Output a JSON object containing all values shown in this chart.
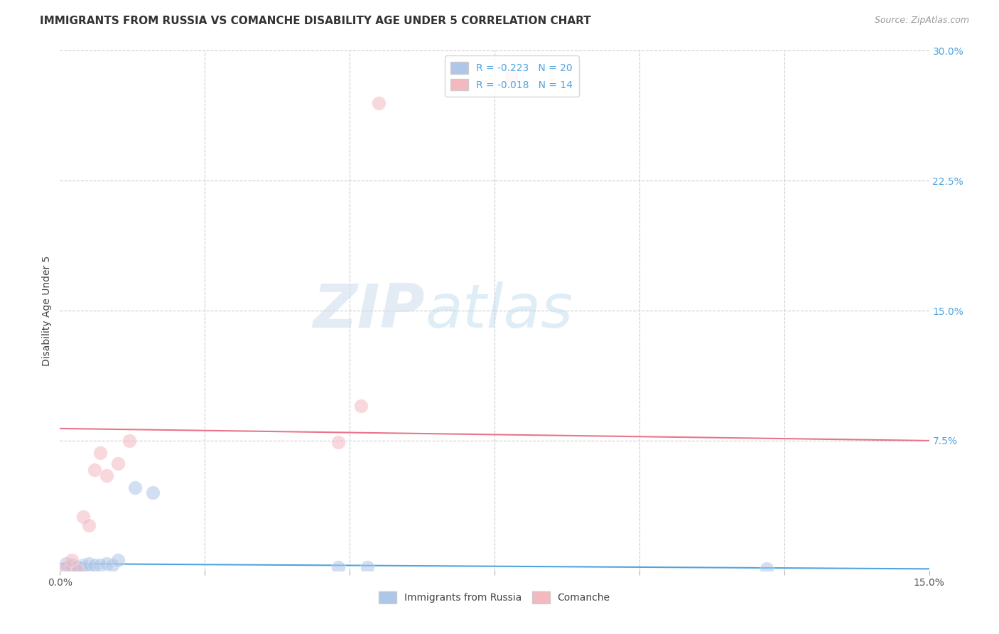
{
  "title": "IMMIGRANTS FROM RUSSIA VS COMANCHE DISABILITY AGE UNDER 5 CORRELATION CHART",
  "source": "Source: ZipAtlas.com",
  "ylabel": "Disability Age Under 5",
  "xlim": [
    0.0,
    0.15
  ],
  "ylim": [
    0.0,
    0.3
  ],
  "xticks": [
    0.0,
    0.025,
    0.05,
    0.075,
    0.1,
    0.125,
    0.15
  ],
  "xtick_labels": [
    "0.0%",
    "",
    "",
    "",
    "",
    "",
    "15.0%"
  ],
  "yticks_right": [
    0.0,
    0.075,
    0.15,
    0.225,
    0.3
  ],
  "ytick_labels_right": [
    "",
    "7.5%",
    "15.0%",
    "22.5%",
    "30.0%"
  ],
  "legend_entries": [
    {
      "label": "R = -0.223   N = 20",
      "color": "#aec6e8"
    },
    {
      "label": "R = -0.018   N = 14",
      "color": "#f4b8c1"
    }
  ],
  "legend_labels_bottom": [
    "Immigrants from Russia",
    "Comanche"
  ],
  "blue_scatter_x": [
    0.001,
    0.001,
    0.002,
    0.002,
    0.003,
    0.003,
    0.004,
    0.004,
    0.005,
    0.005,
    0.006,
    0.007,
    0.008,
    0.009,
    0.01,
    0.013,
    0.016,
    0.048,
    0.053,
    0.122
  ],
  "blue_scatter_y": [
    0.002,
    0.004,
    0.001,
    0.003,
    0.002,
    0.002,
    0.003,
    0.002,
    0.001,
    0.004,
    0.003,
    0.003,
    0.004,
    0.003,
    0.006,
    0.048,
    0.045,
    0.002,
    0.002,
    0.001
  ],
  "pink_scatter_x": [
    0.001,
    0.002,
    0.003,
    0.004,
    0.005,
    0.006,
    0.007,
    0.008,
    0.01,
    0.012,
    0.048,
    0.052,
    0.055,
    0.078
  ],
  "pink_scatter_y": [
    0.002,
    0.006,
    0.0,
    0.031,
    0.026,
    0.058,
    0.068,
    0.055,
    0.062,
    0.075,
    0.074,
    0.095,
    0.27,
    0.285
  ],
  "blue_line_x": [
    0.0,
    0.15
  ],
  "blue_line_y": [
    0.004,
    0.001
  ],
  "pink_line_x": [
    0.0,
    0.15
  ],
  "pink_line_y": [
    0.082,
    0.075
  ],
  "scatter_size": 200,
  "scatter_alpha": 0.55,
  "blue_color": "#aec6e8",
  "pink_color": "#f4b8c1",
  "blue_line_color": "#4fa3e0",
  "pink_line_color": "#e8758a",
  "grid_color": "#cccccc",
  "background_color": "#ffffff",
  "watermark_zip": "ZIP",
  "watermark_atlas": "atlas",
  "title_fontsize": 11,
  "axis_label_fontsize": 10,
  "tick_fontsize": 10,
  "source_fontsize": 9
}
